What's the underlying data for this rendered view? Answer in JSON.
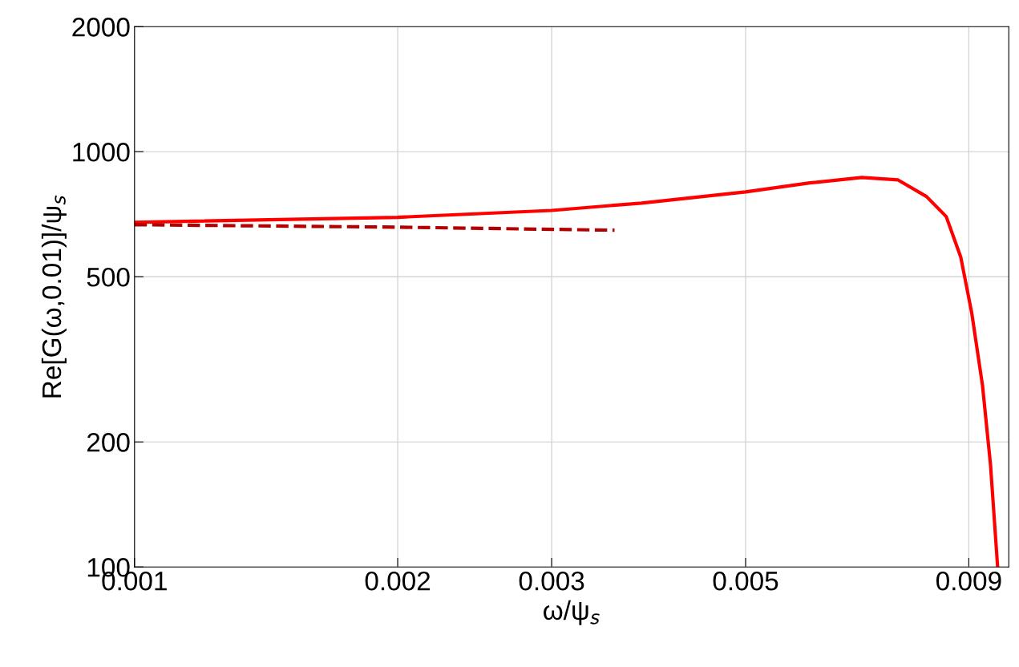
{
  "chart_data": {
    "type": "line",
    "xlabel": "ω/ψ$_{s}$",
    "ylabel": "Re[G(ω,0.01)]/ψ$_{s}$",
    "log": "xy",
    "grid": true,
    "xlim": [
      0.001,
      0.01
    ],
    "xticks": [
      0.001,
      0.002,
      0.003,
      0.005,
      0.009
    ],
    "ylim": [
      100,
      2000
    ],
    "yticks": [
      100,
      200,
      500,
      1000,
      2000
    ],
    "series": [
      {
        "color": "#ff0000",
        "line_style": "solid",
        "x": [
          0.001,
          0.002,
          0.003,
          0.0038,
          0.005,
          0.00592,
          0.00679,
          0.00747,
          0.00805,
          0.00848,
          0.00881,
          0.00907,
          0.00933,
          0.00953,
          0.00971
        ],
        "values": [
          676,
          695,
          722,
          752,
          800,
          841,
          867,
          855,
          780,
          698,
          558,
          409,
          274,
          176,
          100
        ]
      },
      {
        "color": "#b30000",
        "line_style": "dashed",
        "x": [
          0.001,
          0.002,
          0.00354
        ],
        "values": [
          667,
          658,
          647
        ]
      }
    ]
  }
}
